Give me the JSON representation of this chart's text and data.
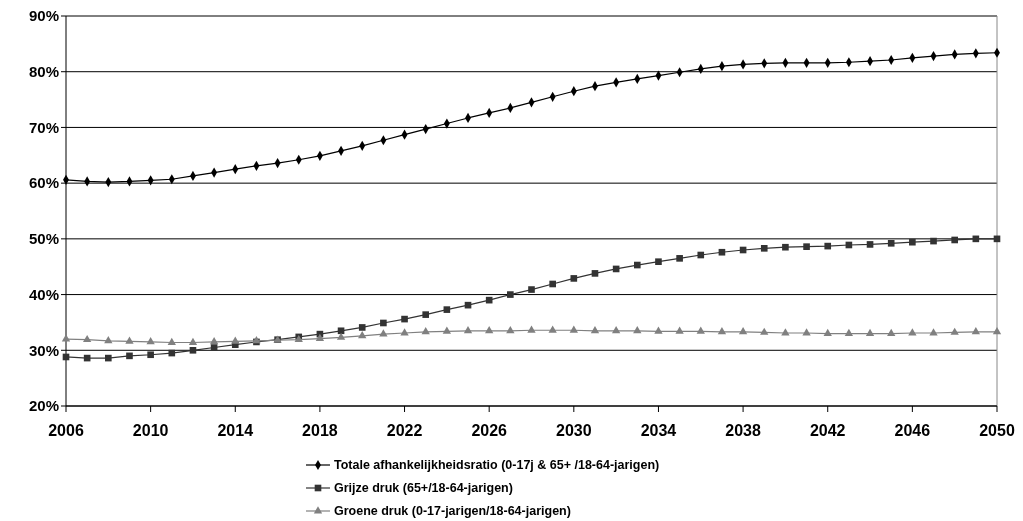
{
  "chart_data": {
    "type": "line",
    "x": [
      2006,
      2007,
      2008,
      2009,
      2010,
      2011,
      2012,
      2013,
      2014,
      2015,
      2016,
      2017,
      2018,
      2019,
      2020,
      2021,
      2022,
      2023,
      2024,
      2025,
      2026,
      2027,
      2028,
      2029,
      2030,
      2031,
      2032,
      2033,
      2034,
      2035,
      2036,
      2037,
      2038,
      2039,
      2040,
      2041,
      2042,
      2043,
      2044,
      2045,
      2046,
      2047,
      2048,
      2049,
      2050
    ],
    "series": [
      {
        "name": "Totale afhankelijkheidsratio (0-17j & 65+ /18-64-jarigen)",
        "color": "#000000",
        "marker": "diamond",
        "values": [
          60.6,
          60.3,
          60.2,
          60.3,
          60.5,
          60.7,
          61.3,
          61.9,
          62.5,
          63.1,
          63.6,
          64.2,
          64.9,
          65.8,
          66.7,
          67.7,
          68.7,
          69.7,
          70.7,
          71.7,
          72.6,
          73.5,
          74.5,
          75.5,
          76.5,
          77.4,
          78.1,
          78.7,
          79.3,
          79.9,
          80.5,
          81.0,
          81.3,
          81.5,
          81.6,
          81.6,
          81.6,
          81.7,
          81.9,
          82.1,
          82.5,
          82.8,
          83.1,
          83.3,
          83.4
        ]
      },
      {
        "name": "Grijze druk (65+/18-64-jarigen)",
        "color": "#333333",
        "marker": "square",
        "values": [
          28.8,
          28.6,
          28.6,
          29.0,
          29.2,
          29.5,
          30.0,
          30.5,
          31.0,
          31.5,
          31.9,
          32.4,
          32.9,
          33.5,
          34.1,
          34.9,
          35.6,
          36.4,
          37.3,
          38.1,
          39.0,
          40.0,
          40.9,
          41.9,
          42.9,
          43.8,
          44.6,
          45.3,
          45.9,
          46.5,
          47.1,
          47.6,
          48.0,
          48.3,
          48.5,
          48.6,
          48.7,
          48.9,
          49.0,
          49.2,
          49.4,
          49.6,
          49.8,
          50.0,
          50.0
        ]
      },
      {
        "name": "Groene druk (0-17-jarigen/18-64-jarigen)",
        "color": "#808080",
        "marker": "triangle",
        "values": [
          32.0,
          31.9,
          31.7,
          31.6,
          31.5,
          31.4,
          31.4,
          31.5,
          31.6,
          31.7,
          31.8,
          31.9,
          32.1,
          32.3,
          32.6,
          32.9,
          33.1,
          33.3,
          33.4,
          33.5,
          33.5,
          33.5,
          33.6,
          33.6,
          33.6,
          33.5,
          33.5,
          33.5,
          33.4,
          33.4,
          33.4,
          33.3,
          33.3,
          33.2,
          33.1,
          33.1,
          33.0,
          33.0,
          33.0,
          33.0,
          33.1,
          33.1,
          33.2,
          33.3,
          33.3
        ]
      }
    ],
    "xlim": [
      2006,
      2050
    ],
    "xticks": [
      2006,
      2010,
      2014,
      2018,
      2022,
      2026,
      2030,
      2034,
      2038,
      2042,
      2046,
      2050
    ],
    "ylim": [
      20,
      90
    ],
    "yticks": [
      {
        "value": 20,
        "label": "20%"
      },
      {
        "value": 30,
        "label": "30%"
      },
      {
        "value": 40,
        "label": "40%"
      },
      {
        "value": 50,
        "label": "50%"
      },
      {
        "value": 60,
        "label": "60%"
      },
      {
        "value": 70,
        "label": "70%"
      },
      {
        "value": 80,
        "label": "80%"
      },
      {
        "value": 90,
        "label": "90%"
      }
    ],
    "grid": "y",
    "legend": "bottom",
    "line_style": "solid"
  }
}
